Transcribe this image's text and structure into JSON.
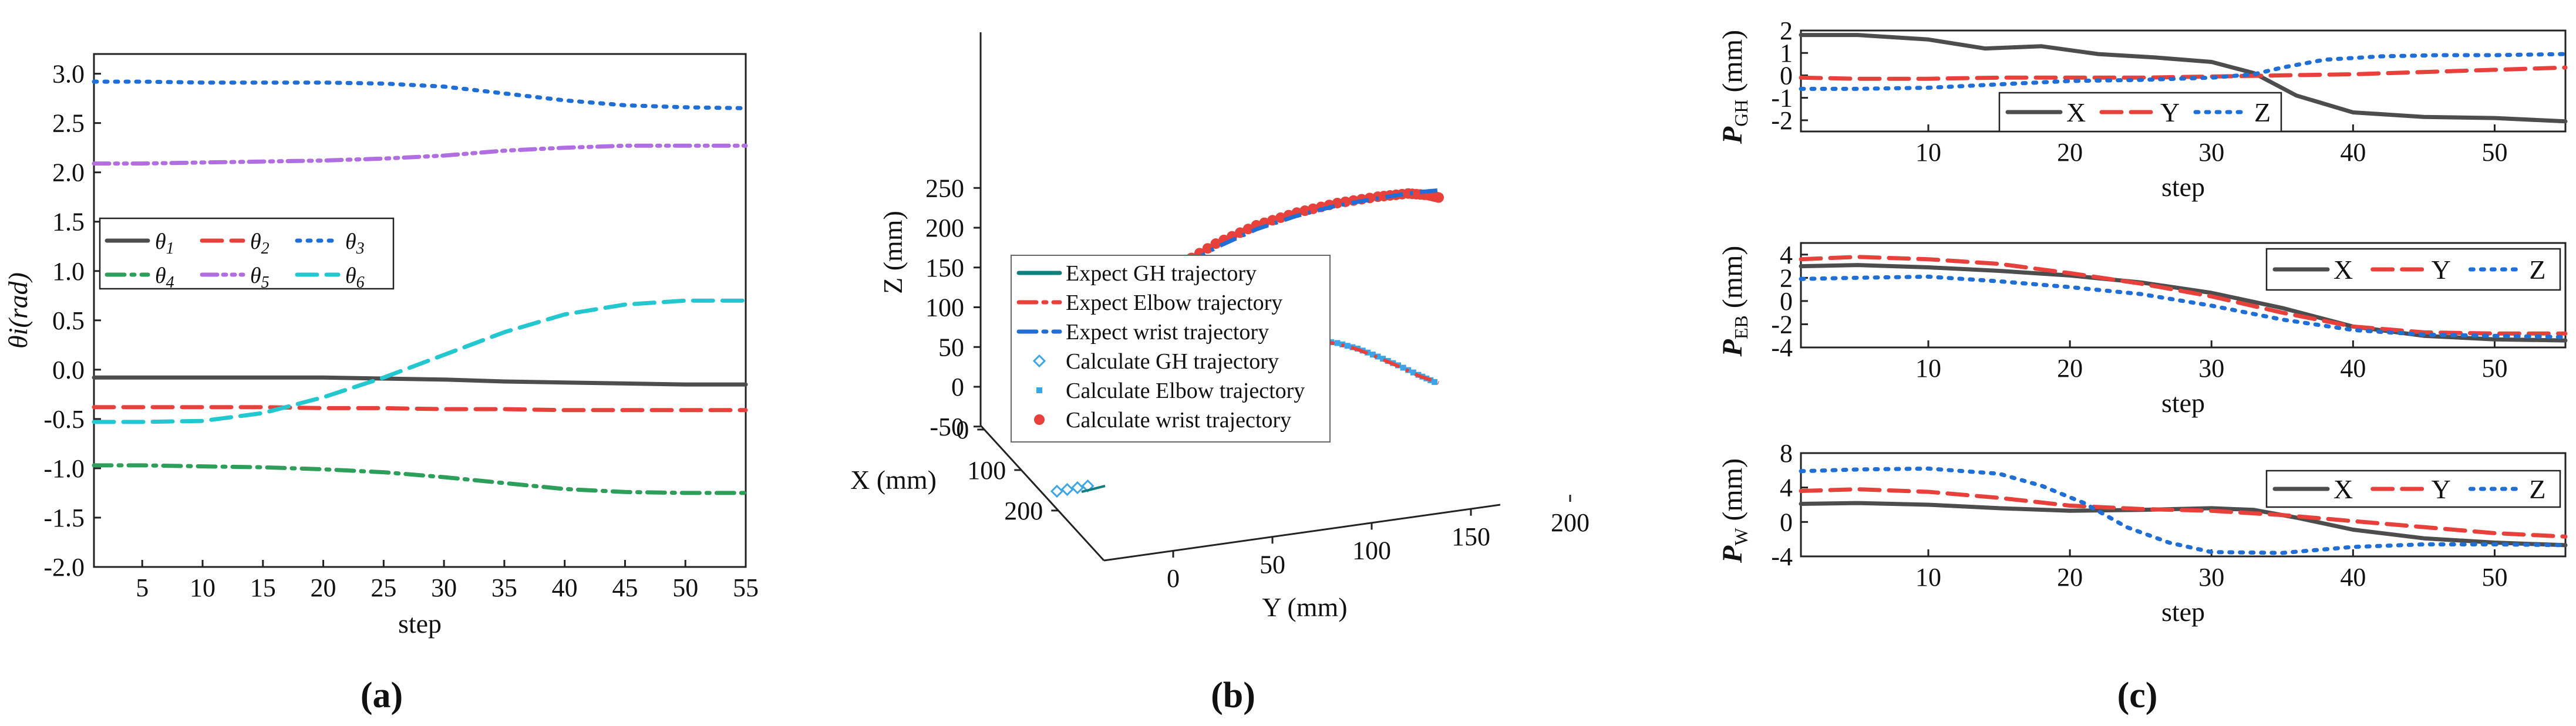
{
  "colors": {
    "dark": "#4d4d4d",
    "red": "#e8413c",
    "blue": "#1f6fd6",
    "green": "#2e9e5b",
    "purple": "#b06ee0",
    "cyan": "#22c7cf",
    "teal": "#0f7f7f",
    "ltblue": "#3aa6e8"
  },
  "chart_data": [
    {
      "id": "a",
      "type": "line",
      "caption": "(a)",
      "xlabel": "step",
      "ylabel": "θi(rad)",
      "xlim": [
        1,
        55
      ],
      "ylim": [
        -2.0,
        3.2
      ],
      "xticks": [
        5,
        10,
        15,
        20,
        25,
        30,
        35,
        40,
        45,
        50,
        55
      ],
      "xtick_labels": [
        "5",
        "10",
        "15",
        "20",
        "25",
        "30",
        "35",
        "40",
        "45",
        "50",
        "55"
      ],
      "yticks": [
        -2.0,
        -1.5,
        -1.0,
        -0.5,
        0.0,
        0.5,
        1.0,
        1.5,
        2.0,
        2.5,
        3.0
      ],
      "ytick_labels": [
        "-2.0",
        "-1.5",
        "-1.0",
        "-0.5",
        "0.0",
        "0.5",
        "1.0",
        "1.5",
        "2.0",
        "2.5",
        "3.0"
      ],
      "series": [
        {
          "name": "θ1",
          "base": "θ",
          "sub": "1",
          "color": "dark",
          "dash": "solid",
          "x": [
            1,
            5,
            10,
            15,
            20,
            25,
            30,
            35,
            40,
            45,
            50,
            55
          ],
          "y": [
            -0.08,
            -0.08,
            -0.08,
            -0.08,
            -0.08,
            -0.09,
            -0.1,
            -0.12,
            -0.13,
            -0.14,
            -0.15,
            -0.15
          ]
        },
        {
          "name": "θ2",
          "base": "θ",
          "sub": "2",
          "color": "red",
          "dash": "dash",
          "x": [
            1,
            5,
            10,
            15,
            20,
            25,
            30,
            35,
            40,
            45,
            50,
            55
          ],
          "y": [
            -0.38,
            -0.38,
            -0.38,
            -0.38,
            -0.39,
            -0.39,
            -0.4,
            -0.4,
            -0.41,
            -0.41,
            -0.41,
            -0.41
          ]
        },
        {
          "name": "θ3",
          "base": "θ",
          "sub": "3",
          "color": "blue",
          "dash": "dot",
          "x": [
            1,
            5,
            10,
            15,
            20,
            25,
            30,
            35,
            40,
            45,
            50,
            55
          ],
          "y": [
            2.92,
            2.92,
            2.91,
            2.91,
            2.91,
            2.9,
            2.87,
            2.8,
            2.73,
            2.68,
            2.66,
            2.65
          ]
        },
        {
          "name": "θ4",
          "base": "θ",
          "sub": "4",
          "color": "green",
          "dash": "dashdot",
          "x": [
            1,
            5,
            10,
            15,
            20,
            25,
            30,
            35,
            40,
            45,
            50,
            55
          ],
          "y": [
            -0.97,
            -0.97,
            -0.98,
            -0.99,
            -1.01,
            -1.04,
            -1.09,
            -1.15,
            -1.21,
            -1.24,
            -1.25,
            -1.25
          ]
        },
        {
          "name": "θ5",
          "base": "θ",
          "sub": "5",
          "color": "purple",
          "dash": "dashdotdot",
          "x": [
            1,
            5,
            10,
            15,
            20,
            25,
            30,
            35,
            40,
            45,
            50,
            55
          ],
          "y": [
            2.09,
            2.09,
            2.1,
            2.11,
            2.12,
            2.14,
            2.17,
            2.22,
            2.25,
            2.27,
            2.27,
            2.27
          ]
        },
        {
          "name": "θ6",
          "base": "θ",
          "sub": "6",
          "color": "cyan",
          "dash": "dash",
          "x": [
            1,
            5,
            10,
            15,
            20,
            25,
            30,
            35,
            40,
            45,
            50,
            55
          ],
          "y": [
            -0.53,
            -0.53,
            -0.52,
            -0.44,
            -0.28,
            -0.08,
            0.15,
            0.38,
            0.56,
            0.66,
            0.7,
            0.7
          ]
        }
      ]
    },
    {
      "id": "b",
      "type": "scatter",
      "caption": "(b)",
      "xlabel": "X (mm)",
      "ylabel": "Y (mm)",
      "zlabel": "Z (mm)",
      "xticks": [
        0,
        100,
        200
      ],
      "xtick_labels": [
        "0",
        "100",
        "200"
      ],
      "yticks": [
        0,
        50,
        100,
        150,
        200
      ],
      "ytick_labels": [
        "0",
        "50",
        "100",
        "150",
        "200"
      ],
      "zticks": [
        -50,
        0,
        50,
        100,
        150,
        200,
        250
      ],
      "ztick_labels": [
        "-50",
        "0",
        "50",
        "100",
        "150",
        "200",
        "250"
      ],
      "legend": [
        "Expect GH trajectory",
        "Expect Elbow trajectory",
        "Expect wrist trajectory",
        "Calculate GH trajectory",
        "Calculate Elbow trajectory",
        "Calculate wrist trajectory"
      ],
      "series": [
        {
          "name": "Expect wrist trajectory",
          "color": "blue",
          "dash": "dashdot",
          "y": [
            35,
            50,
            70,
            90,
            110,
            130,
            150,
            170,
            185,
            195,
            200
          ],
          "z": [
            82,
            110,
            145,
            175,
            198,
            215,
            228,
            237,
            243,
            246,
            247
          ]
        },
        {
          "name": "Calculate wrist trajectory",
          "color": "red",
          "marker": "circle",
          "y": [
            35,
            50,
            70,
            90,
            110,
            130,
            150,
            170,
            185,
            195,
            200
          ],
          "z": [
            80,
            112,
            150,
            180,
            203,
            219,
            231,
            239,
            243,
            241,
            238
          ]
        },
        {
          "name": "Expect Elbow trajectory",
          "color": "red",
          "dash": "dashdot",
          "y": [
            140,
            150,
            160,
            170,
            180,
            190,
            200
          ],
          "z": [
            58,
            54,
            47,
            37,
            26,
            14,
            5
          ]
        },
        {
          "name": "Calculate Elbow trajectory",
          "color": "ltblue",
          "marker": "square",
          "y": [
            138,
            150,
            160,
            170,
            180,
            190,
            198
          ],
          "z": [
            59,
            55,
            48,
            38,
            27,
            15,
            6
          ]
        },
        {
          "name": "Calculate GH trajectory",
          "color": "ltblue",
          "marker": "diamond",
          "x": [
            140,
            145,
            150,
            155
          ],
          "z": [
            -72,
            -73,
            -74,
            -75
          ]
        }
      ]
    },
    {
      "id": "c1",
      "type": "line",
      "ylabel_main": "P",
      "ylabel_sub": "GH",
      "ylabel_unit": " (mm)",
      "xlabel": "step",
      "xlim": [
        1,
        55
      ],
      "ylim": [
        -2.5,
        2.0
      ],
      "xticks": [
        10,
        20,
        30,
        40,
        50
      ],
      "xtick_labels": [
        "10",
        "20",
        "30",
        "40",
        "50"
      ],
      "yticks": [
        -2,
        -1,
        0,
        1,
        2
      ],
      "ytick_labels": [
        "-2",
        "-1",
        "0",
        "1",
        "2"
      ],
      "legend": [
        "X",
        "Y",
        "Z"
      ],
      "series": [
        {
          "name": "X",
          "color": "dark",
          "dash": "solid",
          "x": [
            1,
            5,
            10,
            14,
            18,
            22,
            26,
            30,
            33,
            36,
            40,
            45,
            50,
            55
          ],
          "y": [
            1.8,
            1.8,
            1.6,
            1.2,
            1.3,
            0.95,
            0.8,
            0.6,
            0.1,
            -0.9,
            -1.65,
            -1.85,
            -1.9,
            -2.05
          ]
        },
        {
          "name": "Y",
          "color": "red",
          "dash": "dash",
          "x": [
            1,
            5,
            10,
            15,
            20,
            25,
            30,
            35,
            40,
            45,
            50,
            55
          ],
          "y": [
            -0.1,
            -0.15,
            -0.15,
            -0.1,
            -0.1,
            -0.1,
            -0.05,
            0.0,
            0.05,
            0.15,
            0.25,
            0.35
          ]
        },
        {
          "name": "Z",
          "color": "blue",
          "dash": "dot",
          "x": [
            1,
            5,
            10,
            15,
            20,
            25,
            30,
            33,
            35,
            38,
            42,
            46,
            50,
            55
          ],
          "y": [
            -0.6,
            -0.6,
            -0.55,
            -0.4,
            -0.25,
            -0.2,
            -0.1,
            0.05,
            0.35,
            0.7,
            0.85,
            0.9,
            0.9,
            0.95
          ]
        }
      ]
    },
    {
      "id": "c2",
      "type": "line",
      "ylabel_main": "P",
      "ylabel_sub": "EB",
      "ylabel_unit": " (mm)",
      "xlabel": "step",
      "xlim": [
        1,
        55
      ],
      "ylim": [
        -4,
        5
      ],
      "xticks": [
        10,
        20,
        30,
        40,
        50
      ],
      "xtick_labels": [
        "10",
        "20",
        "30",
        "40",
        "50"
      ],
      "yticks": [
        -4,
        -2,
        0,
        2,
        4
      ],
      "ytick_labels": [
        "-4",
        "-2",
        "0",
        "2",
        "4"
      ],
      "legend": [
        "X",
        "Y",
        "Z"
      ],
      "series": [
        {
          "name": "X",
          "color": "dark",
          "dash": "solid",
          "x": [
            1,
            5,
            10,
            15,
            20,
            25,
            30,
            35,
            40,
            45,
            50,
            55
          ],
          "y": [
            3.0,
            3.1,
            2.9,
            2.6,
            2.2,
            1.6,
            0.7,
            -0.6,
            -2.2,
            -3.0,
            -3.3,
            -3.4
          ]
        },
        {
          "name": "Y",
          "color": "red",
          "dash": "dash",
          "x": [
            1,
            5,
            10,
            15,
            20,
            25,
            30,
            35,
            40,
            45,
            50,
            55
          ],
          "y": [
            3.6,
            3.8,
            3.6,
            3.2,
            2.4,
            1.5,
            0.4,
            -1.0,
            -2.2,
            -2.7,
            -2.8,
            -2.8
          ]
        },
        {
          "name": "Z",
          "color": "blue",
          "dash": "dot",
          "x": [
            1,
            5,
            10,
            15,
            20,
            25,
            30,
            35,
            40,
            45,
            50,
            55
          ],
          "y": [
            1.9,
            2.0,
            2.1,
            1.7,
            1.2,
            0.6,
            -0.4,
            -1.6,
            -2.5,
            -2.9,
            -3.0,
            -3.1
          ]
        }
      ]
    },
    {
      "id": "c3",
      "type": "line",
      "ylabel_main": "P",
      "ylabel_sub": "W",
      "ylabel_unit": " (mm)",
      "xlabel": "step",
      "xlim": [
        1,
        55
      ],
      "ylim": [
        -4,
        8
      ],
      "xticks": [
        10,
        20,
        30,
        40,
        50
      ],
      "xtick_labels": [
        "10",
        "20",
        "30",
        "40",
        "50"
      ],
      "yticks": [
        -4,
        0,
        4,
        8
      ],
      "ytick_labels": [
        "-4",
        "0",
        "4",
        "8"
      ],
      "legend": [
        "X",
        "Y",
        "Z"
      ],
      "series": [
        {
          "name": "X",
          "color": "dark",
          "dash": "solid",
          "x": [
            1,
            5,
            10,
            15,
            20,
            25,
            30,
            33,
            36,
            40,
            45,
            50,
            55
          ],
          "y": [
            2.1,
            2.2,
            2.0,
            1.6,
            1.3,
            1.4,
            1.6,
            1.4,
            0.5,
            -0.9,
            -1.9,
            -2.4,
            -2.7
          ]
        },
        {
          "name": "Y",
          "color": "red",
          "dash": "dash",
          "x": [
            1,
            5,
            10,
            15,
            20,
            25,
            30,
            35,
            40,
            45,
            50,
            55
          ],
          "y": [
            3.6,
            3.8,
            3.5,
            2.8,
            1.9,
            1.5,
            1.3,
            0.8,
            0.1,
            -0.6,
            -1.3,
            -1.7
          ]
        },
        {
          "name": "Z",
          "color": "blue",
          "dash": "dot",
          "x": [
            1,
            5,
            10,
            15,
            18,
            21,
            24,
            27,
            30,
            35,
            40,
            45,
            50,
            55
          ],
          "y": [
            5.9,
            6.1,
            6.2,
            5.6,
            4.2,
            2.2,
            -0.6,
            -2.4,
            -3.5,
            -3.6,
            -2.9,
            -2.6,
            -2.6,
            -2.7
          ]
        }
      ]
    }
  ]
}
